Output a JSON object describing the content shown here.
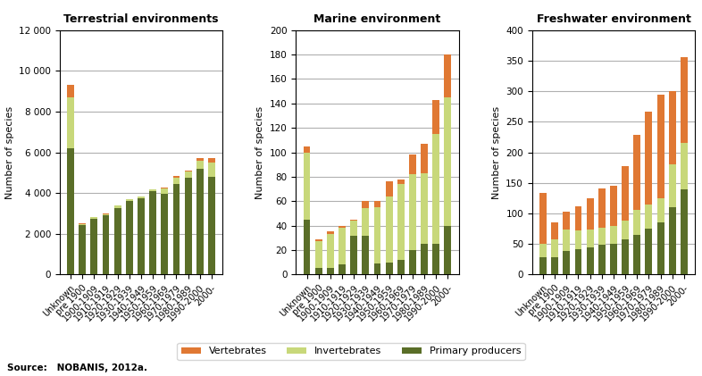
{
  "chart_data": [
    {
      "type": "bar",
      "stacked": true,
      "grid": true,
      "title": "Terrestrial environments",
      "ylabel": "Number of species",
      "categories": [
        "Unknown",
        "pre 1900",
        "1900-1909",
        "1910-1919",
        "1920-1929",
        "1930-1939",
        "1940-1949",
        "1950-1959",
        "1960-1969",
        "1970-1979",
        "1980-1989",
        "1990-2000",
        "2000-"
      ],
      "ylim": [
        0,
        12000
      ],
      "yticks": [
        0,
        {
          "value": 2000,
          "label": "2 000"
        },
        {
          "value": 4000,
          "label": "4 000"
        },
        {
          "value": 6000,
          "label": "6 000"
        },
        {
          "value": 8000,
          "label": "8 000"
        },
        {
          "value": 10000,
          "label": "10 000"
        },
        {
          "value": 12000,
          "label": "12 000"
        }
      ],
      "series": [
        {
          "name": "Vertebrates",
          "color": "#e07833",
          "values": [
            600,
            30,
            20,
            20,
            20,
            20,
            20,
            30,
            60,
            60,
            60,
            150,
            200
          ]
        },
        {
          "name": "Invertebrates",
          "color": "#c8d87a",
          "values": [
            2500,
            60,
            80,
            80,
            90,
            70,
            80,
            80,
            280,
            340,
            330,
            380,
            730
          ]
        },
        {
          "name": "Primary producers",
          "color": "#5a6e28",
          "values": [
            6200,
            2430,
            2720,
            2890,
            3280,
            3620,
            3750,
            4090,
            3950,
            4430,
            4730,
            5200,
            4780
          ]
        }
      ]
    },
    {
      "type": "bar",
      "stacked": true,
      "grid": true,
      "title": "Marine environment",
      "ylabel": "Number of species",
      "categories": [
        "Unknown",
        "pre 1900",
        "1900-1909",
        "1910-1919",
        "1920-1929",
        "1930-1939",
        "1940-1949",
        "1950-1959",
        "1960-1969",
        "1970-1979",
        "1980-1989",
        "1990-2000",
        "2000-"
      ],
      "ylim": [
        0,
        200
      ],
      "yticks": [
        0,
        20,
        40,
        60,
        80,
        100,
        120,
        140,
        160,
        180,
        200
      ],
      "series": [
        {
          "name": "Vertebrates",
          "color": "#e07833",
          "values": [
            5,
            2,
            2,
            2,
            1,
            6,
            5,
            12,
            4,
            16,
            24,
            28,
            35
          ]
        },
        {
          "name": "Invertebrates",
          "color": "#c8d87a",
          "values": [
            55,
            22,
            28,
            30,
            12,
            22,
            46,
            54,
            62,
            62,
            58,
            90,
            105
          ]
        },
        {
          "name": "Primary producers",
          "color": "#5a6e28",
          "values": [
            45,
            5,
            5,
            8,
            32,
            32,
            9,
            10,
            12,
            20,
            25,
            25,
            40
          ]
        }
      ]
    },
    {
      "type": "bar",
      "stacked": true,
      "grid": true,
      "title": "Freshwater environment",
      "ylabel": "Number of species",
      "categories": [
        "Unknown",
        "pre 1900",
        "1900-1909",
        "1910-1919",
        "1920-1929",
        "1930-1939",
        "1940-1949",
        "1950-1959",
        "1960-1969",
        "1970-1979",
        "1980-1989",
        "1990-2000",
        "2000-"
      ],
      "ylim": [
        0,
        400
      ],
      "yticks": [
        0,
        50,
        100,
        150,
        200,
        250,
        300,
        350,
        400
      ],
      "series": [
        {
          "name": "Vertebrates",
          "color": "#e07833",
          "values": [
            83,
            27,
            30,
            40,
            52,
            65,
            65,
            90,
            123,
            152,
            170,
            120,
            140
          ]
        },
        {
          "name": "Invertebrates",
          "color": "#c8d87a",
          "values": [
            22,
            30,
            35,
            30,
            28,
            28,
            30,
            30,
            40,
            40,
            40,
            70,
            75
          ]
        },
        {
          "name": "Primary producers",
          "color": "#5a6e28",
          "values": [
            28,
            28,
            38,
            42,
            45,
            48,
            50,
            58,
            65,
            75,
            85,
            110,
            140
          ]
        }
      ]
    }
  ],
  "legend": "lower center",
  "annotations": [
    "Source:   NOBANIS, 2012a."
  ]
}
